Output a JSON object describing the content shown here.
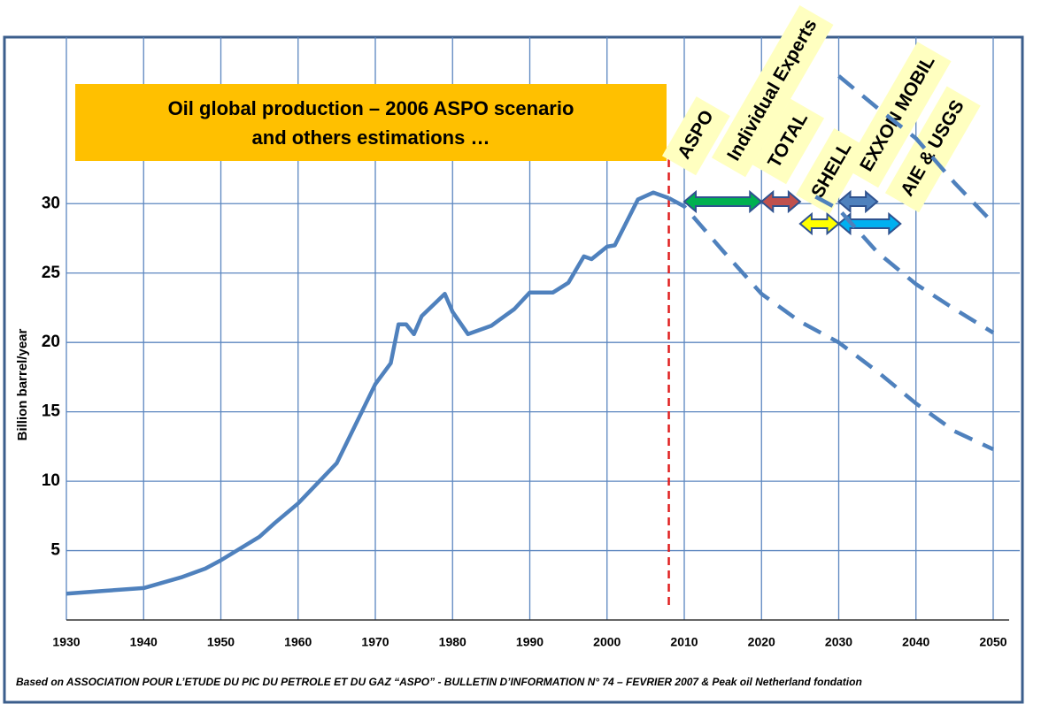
{
  "chart_data": {
    "type": "line",
    "title": [
      "Oil global production – 2006 ASPO scenario",
      "and others estimations …"
    ],
    "y_label": "Billion barrel/year",
    "footnote": "Based on  ASSOCIATION POUR L’ETUDE DU PIC DU PETROLE ET DU GAZ “ASPO” - BULLETIN D’INFORMATION N° 74 – FEVRIER 2007 &  Peak oil Netherland fondation",
    "xlim": [
      1930,
      2050
    ],
    "xticks": [
      1930,
      1940,
      1950,
      1960,
      1970,
      1980,
      1990,
      2000,
      2010,
      2020,
      2030,
      2040,
      2050
    ],
    "ylim": [
      0,
      42
    ],
    "yticks": [
      5,
      10,
      15,
      20,
      25,
      30
    ],
    "grid": true,
    "series": [
      {
        "color": "#4f81bd",
        "dashed": false,
        "x": [
          1930,
          1935,
          1940,
          1945,
          1948,
          1950,
          1955,
          1957,
          1960,
          1965,
          1970,
          1972,
          1973,
          1974,
          1975,
          1976,
          1979,
          1980,
          1982,
          1984,
          1985,
          1986,
          1988,
          1990,
          1993,
          1995,
          1997,
          1998,
          2000,
          2001,
          2004,
          2006,
          2008
        ],
        "values": [
          1.9,
          2.1,
          2.3,
          3.1,
          3.7,
          4.3,
          6.0,
          7.0,
          8.4,
          11.3,
          17.0,
          18.5,
          21.3,
          21.3,
          20.6,
          21.9,
          23.5,
          22.2,
          20.6,
          21.0,
          21.2,
          21.6,
          22.4,
          23.6,
          23.6,
          24.3,
          26.2,
          26.0,
          26.9,
          27.0,
          30.3,
          30.8,
          30.4
        ]
      },
      {
        "color": "#4f81bd",
        "dashed": true,
        "x": [
          2008,
          2010,
          2015,
          2020,
          2025,
          2030,
          2035,
          2040,
          2045,
          2050
        ],
        "values": [
          30.4,
          29.8,
          26.6,
          23.5,
          21.5,
          20.0,
          17.9,
          15.6,
          13.6,
          12.3
        ]
      },
      {
        "color": "#4f81bd",
        "dashed": true,
        "x": [
          2027,
          2030,
          2035,
          2040,
          2045,
          2050
        ],
        "values": [
          30.5,
          29.6,
          26.5,
          24.2,
          22.4,
          20.7
        ]
      },
      {
        "color": "#4f81bd",
        "dashed": true,
        "x": [
          2030,
          2035,
          2040,
          2045,
          2050
        ],
        "values": [
          39.2,
          36.9,
          34.7,
          31.5,
          28.6
        ]
      }
    ],
    "annotations": [
      {
        "text": "ASPO",
        "x": 2008,
        "color": "#e02020"
      },
      {
        "text": "Individual Experts",
        "x": [
          2010,
          2020
        ],
        "color": "#00b050"
      },
      {
        "text": "TOTAL",
        "x": [
          2020,
          2025
        ],
        "color": "#c0504d"
      },
      {
        "text": "SHELL",
        "x": [
          2025,
          2030
        ],
        "color": "#ffff00"
      },
      {
        "text": "EXXON MOBIL",
        "x": [
          2030,
          2035
        ],
        "color": "#4f81bd"
      },
      {
        "text": "AIE & USGS",
        "x": [
          2030,
          2038
        ],
        "color": "#00b0f0"
      }
    ]
  }
}
